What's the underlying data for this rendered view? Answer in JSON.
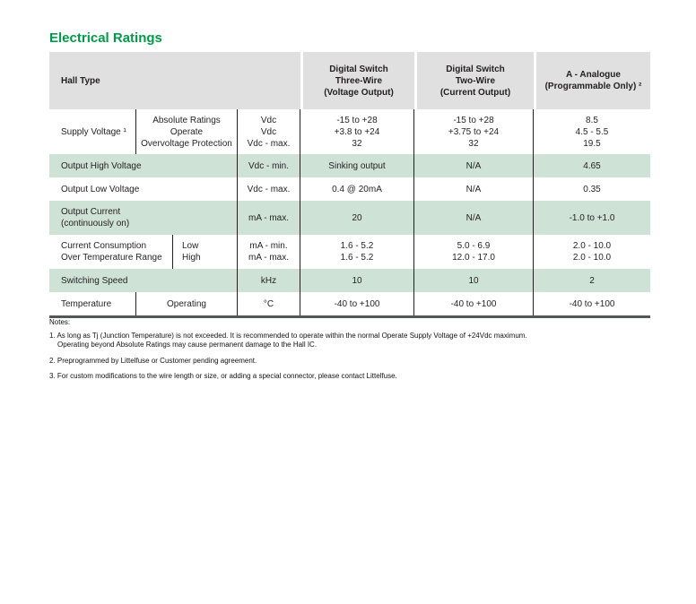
{
  "title": "Electrical Ratings",
  "colors": {
    "accent_green": "#009b48",
    "row_green": "#cee2d6",
    "header_gray": "#e0e0e0"
  },
  "table": {
    "headers": [
      "Hall Type",
      "Digital Switch\nThree-Wire\n(Voltage Output)",
      "Digital Switch\nTwo-Wire\n(Current Output)",
      "A - Analogue\n(Programmable Only) ²"
    ],
    "rows": [
      {
        "label": "Supply Voltage ¹",
        "sub": "Absolute Ratings\nOperate\nOvervoltage Protection",
        "unit": "Vdc\nVdc\nVdc - max.",
        "three_wire": "-15 to +28\n+3.8 to +24\n32",
        "two_wire": "-15 to +28\n+3.75 to +24\n32",
        "analogue": "8.5\n4.5 - 5.5\n19.5"
      },
      {
        "label": "Output High Voltage",
        "unit": "Vdc - min.",
        "three_wire": "Sinking output",
        "two_wire": "N/A",
        "analogue": "4.65"
      },
      {
        "label": "Output Low Voltage",
        "unit": "Vdc - max.",
        "three_wire": "0.4 @ 20mA",
        "two_wire": "N/A",
        "analogue": "0.35"
      },
      {
        "label": "Output Current\n(continuously on)",
        "unit": "mA - max.",
        "three_wire": "20",
        "two_wire": "N/A",
        "analogue": "-1.0 to +1.0"
      },
      {
        "label": "Current Consumption\nOver Temperature Range",
        "sub": "Low\nHigh",
        "unit": "mA - min.\nmA - max.",
        "three_wire": "1.6 - 5.2\n1.6 - 5.2",
        "two_wire": "5.0 - 6.9\n12.0 - 17.0",
        "analogue": "2.0 - 10.0\n2.0 - 10.0"
      },
      {
        "label": "Switching Speed",
        "unit": "kHz",
        "three_wire": "10",
        "two_wire": "10",
        "analogue": "2"
      },
      {
        "label": "Temperature",
        "sub": "Operating",
        "unit": "°C",
        "three_wire": "-40 to +100",
        "two_wire": "-40 to +100",
        "analogue": "-40 to +100"
      }
    ]
  },
  "notes": {
    "title": "Notes:",
    "items": [
      "1. As long as Tj (Junction Temperature) is not exceeded. It is recommended to operate within the normal Operate Supply Voltage of +24Vdc maximum.\nOperating beyond Absolute Ratings may cause permanent damage to the Hall IC.",
      "2. Preprogrammed by Littelfuse or Customer pending agreement.",
      "3. For custom modifications to the wire length or size, or adding a special connector, please contact Littelfuse."
    ]
  }
}
